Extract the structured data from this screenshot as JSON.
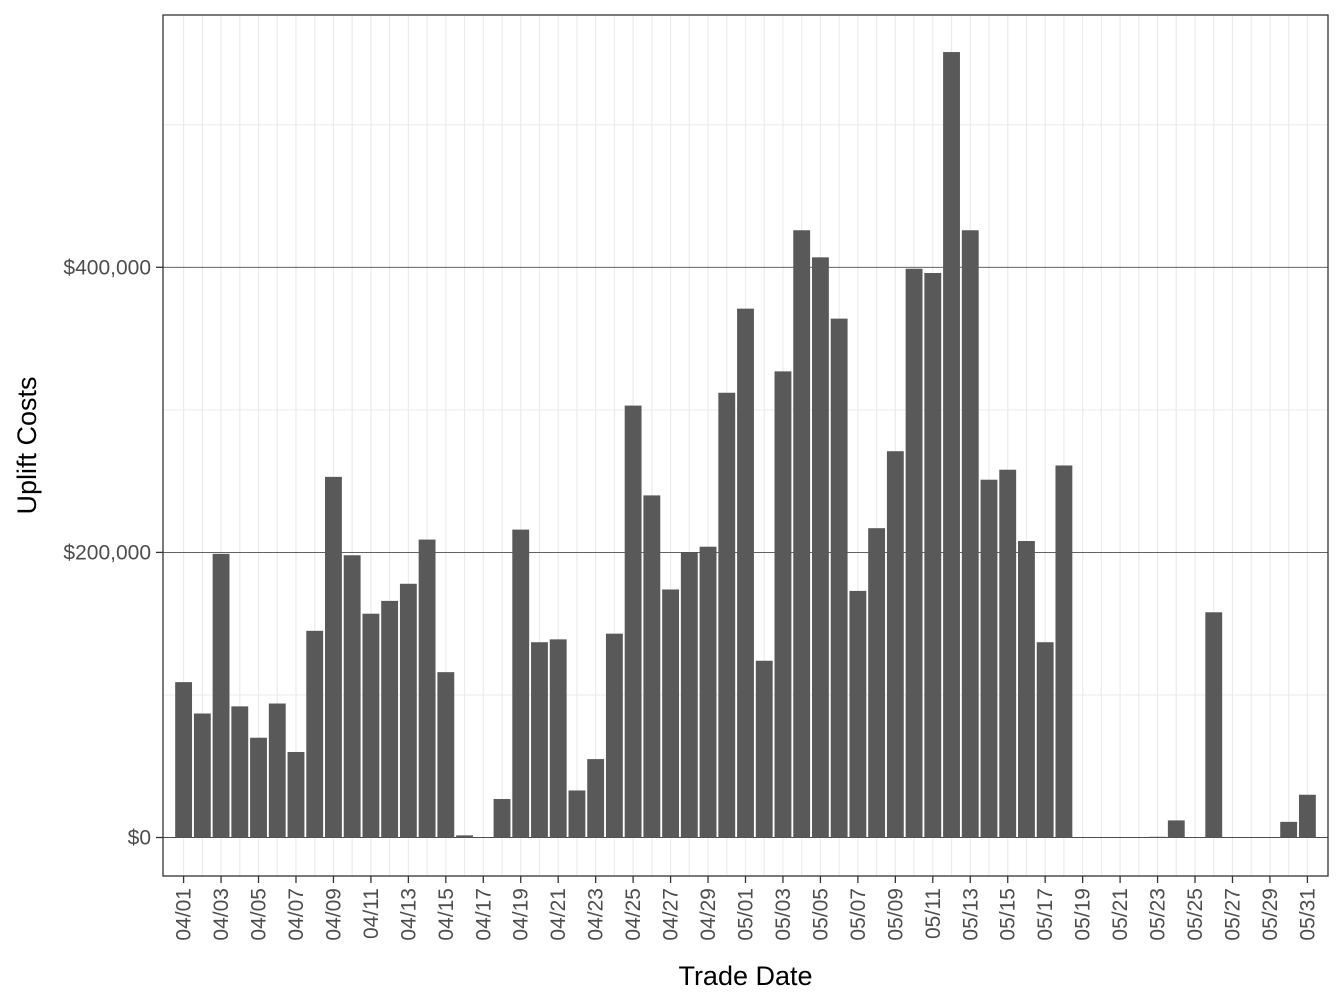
{
  "chart_data": {
    "type": "bar",
    "xlabel": "Trade Date",
    "ylabel": "Uplift Costs",
    "ylim": [
      -27000,
      577000
    ],
    "y_ticks": [
      0,
      200000,
      400000
    ],
    "y_tick_labels": [
      "$0",
      "$200,000",
      "$400,000"
    ],
    "grid": true,
    "bar_color": "#595959",
    "categories": [
      "04/01",
      "04/02",
      "04/03",
      "04/04",
      "04/05",
      "04/06",
      "04/07",
      "04/08",
      "04/09",
      "04/10",
      "04/11",
      "04/12",
      "04/13",
      "04/14",
      "04/15",
      "04/16",
      "04/17",
      "04/18",
      "04/19",
      "04/20",
      "04/21",
      "04/22",
      "04/23",
      "04/24",
      "04/25",
      "04/26",
      "04/27",
      "04/28",
      "04/29",
      "04/30",
      "05/01",
      "05/02",
      "05/03",
      "05/04",
      "05/05",
      "05/06",
      "05/07",
      "05/08",
      "05/09",
      "05/10",
      "05/11",
      "05/12",
      "05/13",
      "05/14",
      "05/15",
      "05/16",
      "05/17",
      "05/18",
      "05/19",
      "05/20",
      "05/21",
      "05/22",
      "05/23",
      "05/24",
      "05/25",
      "05/26",
      "05/27",
      "05/28",
      "05/29",
      "05/30",
      "05/31"
    ],
    "values": [
      109000,
      87000,
      199000,
      92000,
      70000,
      94000,
      60000,
      145000,
      253000,
      198000,
      157000,
      166000,
      178000,
      209000,
      116000,
      1500,
      0,
      27000,
      216000,
      137000,
      139000,
      33000,
      55000,
      143000,
      303000,
      240000,
      174000,
      200000,
      204000,
      312000,
      371000,
      124000,
      327000,
      426000,
      407000,
      364000,
      173000,
      217000,
      271000,
      399000,
      396000,
      551000,
      426000,
      251000,
      258000,
      208000,
      137000,
      261000,
      0,
      0,
      0,
      0,
      500,
      12000,
      0,
      158000,
      0,
      0,
      0,
      11000,
      30000
    ],
    "x_tick_labels": [
      "04/01",
      "04/03",
      "04/05",
      "04/07",
      "04/09",
      "04/11",
      "04/13",
      "04/15",
      "04/17",
      "04/19",
      "04/21",
      "04/23",
      "04/25",
      "04/27",
      "04/29",
      "05/01",
      "05/03",
      "05/05",
      "05/07",
      "05/09",
      "05/11",
      "05/13",
      "05/15",
      "05/17",
      "05/19",
      "05/21",
      "05/23",
      "05/25",
      "05/27",
      "05/29",
      "05/31"
    ]
  }
}
